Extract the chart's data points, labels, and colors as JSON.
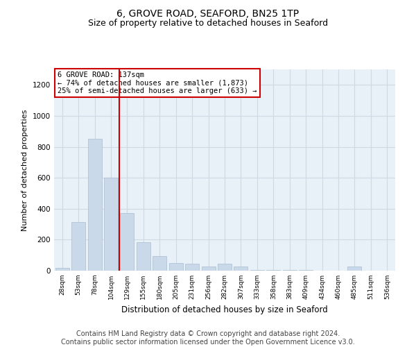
{
  "title": "6, GROVE ROAD, SEAFORD, BN25 1TP",
  "subtitle": "Size of property relative to detached houses in Seaford",
  "xlabel": "Distribution of detached houses by size in Seaford",
  "ylabel": "Number of detached properties",
  "bar_color": "#c9d9ea",
  "bar_edge_color": "#aabcce",
  "grid_color": "#d0d8e4",
  "background_color": "#e8f0f8",
  "annotation_box_color": "#ffffff",
  "annotation_box_edge": "#cc0000",
  "vline_color": "#cc0000",
  "categories": [
    "28sqm",
    "53sqm",
    "78sqm",
    "104sqm",
    "129sqm",
    "155sqm",
    "180sqm",
    "205sqm",
    "231sqm",
    "256sqm",
    "282sqm",
    "307sqm",
    "333sqm",
    "358sqm",
    "383sqm",
    "409sqm",
    "434sqm",
    "460sqm",
    "485sqm",
    "511sqm",
    "536sqm"
  ],
  "values": [
    20,
    315,
    850,
    600,
    370,
    185,
    95,
    50,
    45,
    25,
    45,
    25,
    5,
    5,
    5,
    5,
    0,
    0,
    25,
    0,
    0
  ],
  "vline_x": 3.5,
  "annotation_text": "6 GROVE ROAD: 137sqm\n← 74% of detached houses are smaller (1,873)\n25% of semi-detached houses are larger (633) →",
  "footnote": "Contains HM Land Registry data © Crown copyright and database right 2024.\nContains public sector information licensed under the Open Government Licence v3.0.",
  "ylim": [
    0,
    1300
  ],
  "yticks": [
    0,
    200,
    400,
    600,
    800,
    1000,
    1200
  ],
  "title_fontsize": 10,
  "subtitle_fontsize": 9,
  "footnote_fontsize": 7,
  "annotation_fontsize": 7.5,
  "ylabel_fontsize": 8,
  "xlabel_fontsize": 8.5
}
